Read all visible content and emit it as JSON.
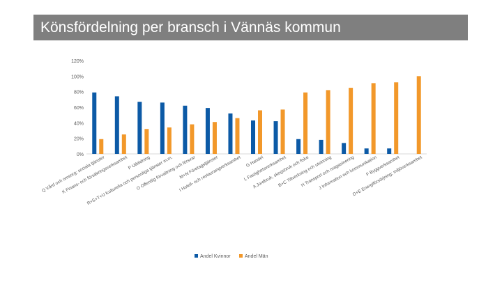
{
  "slide": {
    "title": "Könsfördelning per bransch i Vännäs kommun"
  },
  "chart_data": {
    "type": "bar",
    "title": "",
    "xlabel": "",
    "ylabel": "",
    "ylim": [
      0,
      120
    ],
    "yticks": [
      0,
      20,
      40,
      60,
      80,
      100,
      120
    ],
    "ytick_labels": [
      "0%",
      "20%",
      "40%",
      "60%",
      "80%",
      "100%",
      "120%"
    ],
    "grid": false,
    "legend_position": "bottom",
    "categories": [
      "Q Vård och omsorg; sociala tjänster",
      "K Finans- och försäkringsverksamhet",
      "P Utbildning",
      "R+S+T+U Kulturella och personliga tjänster m.m.",
      "O Offentlig förvaltning och försvar",
      "M+N Företagstjänster",
      "I Hotell- och restaurangverksamhet",
      "G Handel",
      "L Fastighetsverksamhet",
      "A Jordbruk, skogsbruk och fiske",
      "B+C Tillverkning och utvinning",
      "H Transport och magasinering",
      "J Information och kommunikation",
      "F Byggverksamhet",
      "D+E Energiförsörjning; miljöverksamhet"
    ],
    "series": [
      {
        "name": "Andel Kvinnor",
        "color": "#0c5aa6",
        "values": [
          79,
          74,
          67,
          66,
          62,
          59,
          52,
          43,
          42,
          19,
          18,
          14,
          7,
          7,
          0
        ]
      },
      {
        "name": "Andel Män",
        "color": "#f2982a",
        "values": [
          19,
          25,
          32,
          34,
          38,
          41,
          46,
          56,
          57,
          79,
          82,
          85,
          91,
          92,
          100
        ]
      }
    ]
  }
}
